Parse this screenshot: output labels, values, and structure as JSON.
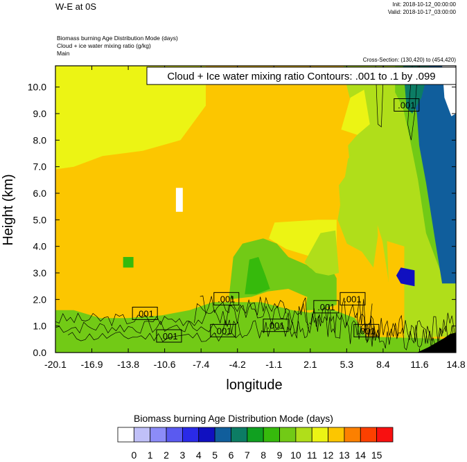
{
  "header": {
    "title": "W-E at 0S",
    "init": "Init: 2018-10-12_00:00:00",
    "valid": "Valid: 2018-10-17_03:00:00",
    "meta_lines": [
      "Biomass burning Age Distribution Mode   (days)",
      "Cloud + ice water mixing ratio   (g/kg)",
      "Main"
    ],
    "cross_section": "Cross-Section: (130,420) to (454,420)",
    "contour_box": "Cloud + Ice water mixing ratio Contours: .001 to .1 by .099"
  },
  "chart_data": {
    "type": "heatmap",
    "xlabel": "longitude",
    "ylabel": "Height (km)",
    "xlim": [
      -20.1,
      14.8
    ],
    "ylim": [
      0.0,
      10.8
    ],
    "x_ticks": [
      "-20.1",
      "-16.9",
      "-13.8",
      "-10.6",
      "-7.4",
      "-4.2",
      "-1.1",
      "2.1",
      "5.3",
      "8.4",
      "11.6",
      "14.8"
    ],
    "y_ticks": [
      "0.0",
      "1.0",
      "2.0",
      "3.0",
      "4.0",
      "5.0",
      "6.0",
      "7.0",
      "8.0",
      "9.0",
      "10.0"
    ],
    "y_tick_values": [
      0,
      1,
      2,
      3,
      4,
      5,
      6,
      7,
      8,
      9,
      10
    ],
    "contour_labels": [
      {
        "text": ".001",
        "x": 10.5,
        "y": 9.3
      },
      {
        "text": ".001",
        "x": -12.3,
        "y": 1.45
      },
      {
        "text": ".001",
        "x": -10.2,
        "y": 0.6
      },
      {
        "text": ".001",
        "x": -5.2,
        "y": 2.0
      },
      {
        "text": ".001",
        "x": -5.5,
        "y": 0.8
      },
      {
        "text": ".001",
        "x": -0.9,
        "y": 1.0
      },
      {
        "text": ".001",
        "x": 3.5,
        "y": 1.7
      },
      {
        "text": ".001",
        "x": 5.8,
        "y": 2.0
      },
      {
        "text": ".001",
        "x": 7.0,
        "y": 0.8
      }
    ],
    "colorbar": {
      "title": "Biomass burning Age Distribution Mode  (days)",
      "labels": [
        "0",
        "1",
        "2",
        "3",
        "4",
        "5",
        "6",
        "7",
        "8",
        "9",
        "10",
        "11",
        "12",
        "13",
        "14",
        "15"
      ],
      "colors": [
        "#ffffff",
        "#c0c0f8",
        "#8c8cf8",
        "#5a5af0",
        "#2a2ae8",
        "#1010c0",
        "#105e9c",
        "#0c7c64",
        "#10a020",
        "#36ba0c",
        "#72ca16",
        "#b0de1a",
        "#ecf414",
        "#fcc600",
        "#fc8000",
        "#fc4000",
        "#f81010"
      ]
    },
    "regions": [
      {
        "level": 12,
        "desc": "upper-left"
      },
      {
        "level": 13,
        "desc": "middle"
      },
      {
        "level": 11,
        "desc": "upper-right"
      },
      {
        "level": 10,
        "desc": "low-level band"
      },
      {
        "level": 6,
        "desc": "far-right upper"
      },
      {
        "level": 0,
        "desc": "white patches"
      }
    ]
  }
}
